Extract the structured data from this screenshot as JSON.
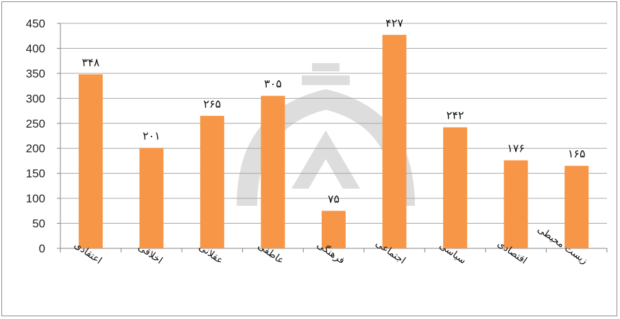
{
  "chart_data": {
    "type": "bar",
    "categories": [
      "اعتقادی",
      "اخلاقی",
      "عقلانی",
      "عاطفی",
      "فرهنگی",
      "اجتماعی",
      "سیاسی",
      "اقتصادی",
      "زیست محیطی"
    ],
    "values": [
      348,
      201,
      265,
      305,
      75,
      427,
      242,
      176,
      165
    ],
    "data_labels": [
      "۳۴۸",
      "۲۰۱",
      "۲۶۵",
      "۳۰۵",
      "۷۵",
      "۴۲۷",
      "۲۴۲",
      "۱۷۶",
      "۱۶۵"
    ],
    "yticks": [
      "0",
      "50",
      "100",
      "150",
      "200",
      "250",
      "300",
      "350",
      "400",
      "450"
    ],
    "ylim": [
      0,
      450
    ],
    "title": "",
    "xlabel": "",
    "ylabel": "",
    "grid": true,
    "legend": "none",
    "bar_color": "#F79646"
  }
}
